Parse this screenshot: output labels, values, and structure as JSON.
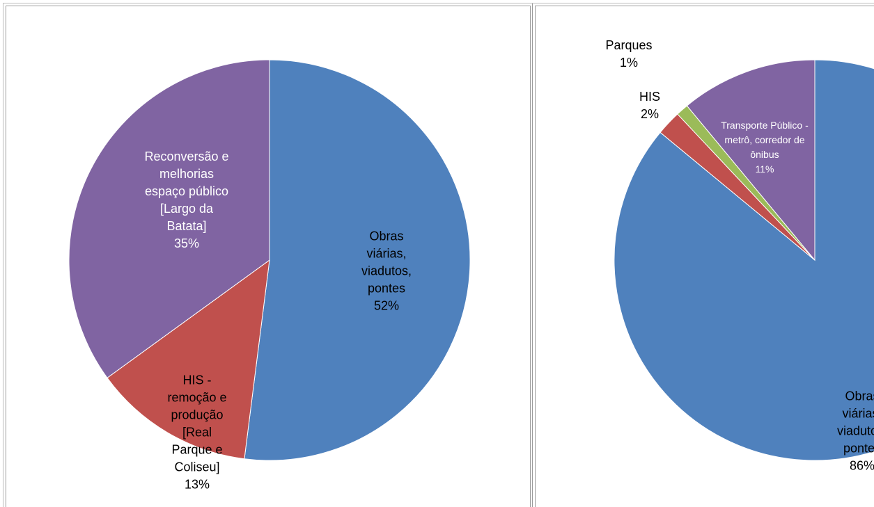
{
  "chart_data": [
    {
      "type": "pie",
      "categories": [
        "Obras viárias, viadutos, pontes",
        "HIS - remoção e produção [Real Parque e Coliseu]",
        "Reconversão e melhorias espaço público [Largo da Batata]"
      ],
      "values": [
        52,
        13,
        35
      ],
      "value_labels": [
        "52%",
        "13%",
        "35%"
      ],
      "colors": [
        "#4f81bd",
        "#c0504d",
        "#8064a2"
      ]
    },
    {
      "type": "pie",
      "categories": [
        "Obras viárias, viadutos, pontes",
        "HIS",
        "Parques",
        "Transporte Público - metrô, corredor de ônibus"
      ],
      "values": [
        86,
        2,
        1,
        11
      ],
      "value_labels": [
        "86%",
        "2%",
        "1%",
        "11%"
      ],
      "colors": [
        "#4f81bd",
        "#c0504d",
        "#9bbb59",
        "#8064a2"
      ]
    }
  ]
}
